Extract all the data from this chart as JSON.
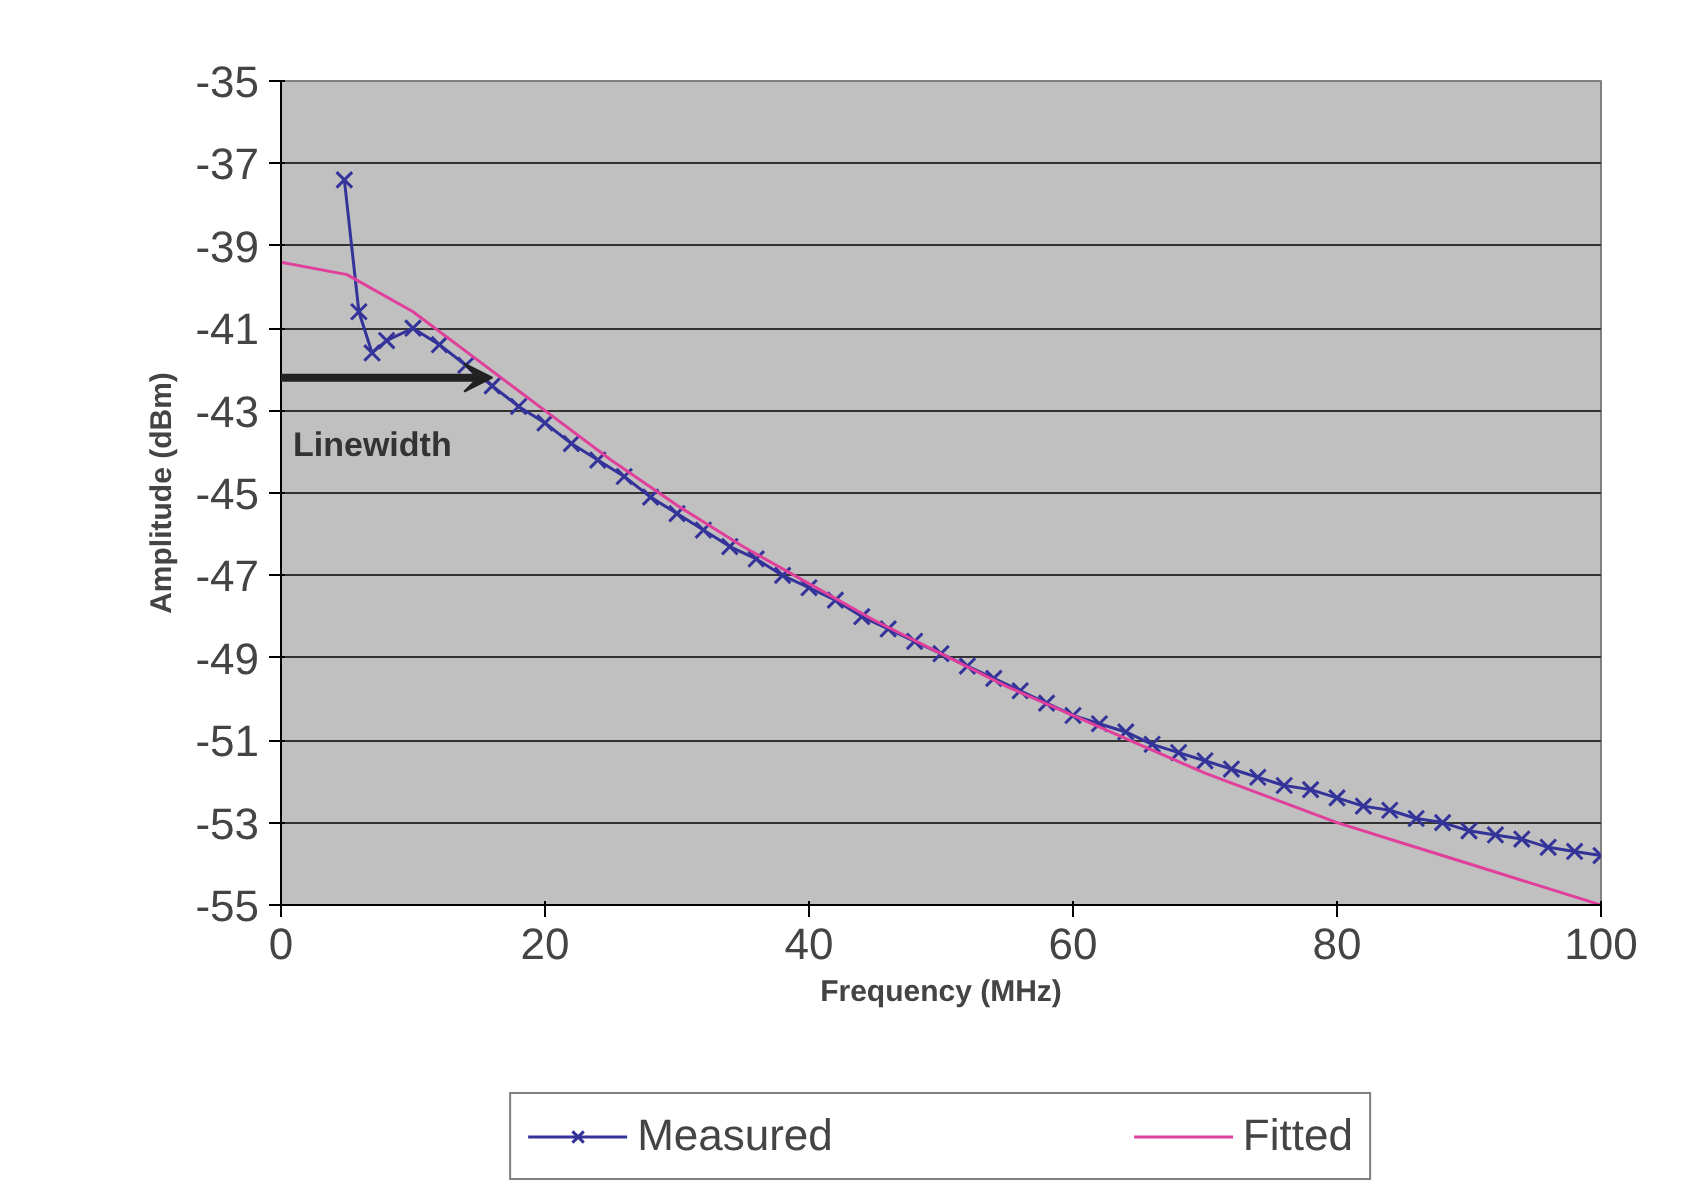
{
  "chart_data": {
    "type": "line",
    "xlabel": "Frequency (MHz)",
    "ylabel": "Amplitude (dBm)",
    "xlim": [
      0,
      100
    ],
    "xticks": [
      0,
      20,
      40,
      60,
      80,
      100
    ],
    "ylim": [
      -55,
      -35
    ],
    "yticks": [
      -55,
      -53,
      -51,
      -49,
      -47,
      -45,
      -43,
      -41,
      -39,
      -37,
      -35
    ],
    "grid": "y",
    "legend": "bottom",
    "annotations": [
      {
        "text": "Linewidth",
        "x": 16,
        "y": -42.2
      }
    ],
    "series": [
      {
        "name": "Measured",
        "color": "#333399",
        "marker": "cross",
        "x": [
          4.8,
          5.9,
          6.9,
          8,
          10,
          12,
          14,
          16,
          18,
          20,
          22,
          24,
          26,
          28,
          30,
          32,
          34,
          36,
          38,
          40,
          42,
          44,
          46,
          48,
          50,
          52,
          54,
          56,
          58,
          60,
          62,
          64,
          66,
          68,
          70,
          72,
          74,
          76,
          78,
          80,
          82,
          84,
          86,
          88,
          90,
          92,
          94,
          96,
          98,
          100
        ],
        "values": [
          -37.4,
          -40.6,
          -41.6,
          -41.3,
          -41.0,
          -41.4,
          -41.9,
          -42.4,
          -42.9,
          -43.3,
          -43.8,
          -44.2,
          -44.6,
          -45.1,
          -45.5,
          -45.9,
          -46.3,
          -46.6,
          -47.0,
          -47.3,
          -47.6,
          -48.0,
          -48.3,
          -48.6,
          -48.9,
          -49.2,
          -49.5,
          -49.8,
          -50.1,
          -50.4,
          -50.6,
          -50.8,
          -51.1,
          -51.3,
          -51.5,
          -51.7,
          -51.9,
          -52.1,
          -52.2,
          -52.4,
          -52.6,
          -52.7,
          -52.9,
          -53.0,
          -53.2,
          -53.3,
          -53.4,
          -53.6,
          -53.7,
          -53.8
        ]
      },
      {
        "name": "Fitted",
        "color": "#e0409c",
        "marker": "none",
        "x": [
          0,
          5,
          10,
          15,
          20,
          25,
          30,
          35,
          40,
          45,
          50,
          55,
          60,
          65,
          70,
          75,
          80,
          85,
          90,
          95,
          100
        ],
        "values": [
          -39.4,
          -39.7,
          -40.6,
          -41.8,
          -43.0,
          -44.2,
          -45.3,
          -46.3,
          -47.2,
          -48.1,
          -48.9,
          -49.7,
          -50.4,
          -51.1,
          -51.8,
          -52.4,
          -53.0,
          -53.5,
          -54.0,
          -54.5,
          -55.0
        ]
      }
    ]
  }
}
